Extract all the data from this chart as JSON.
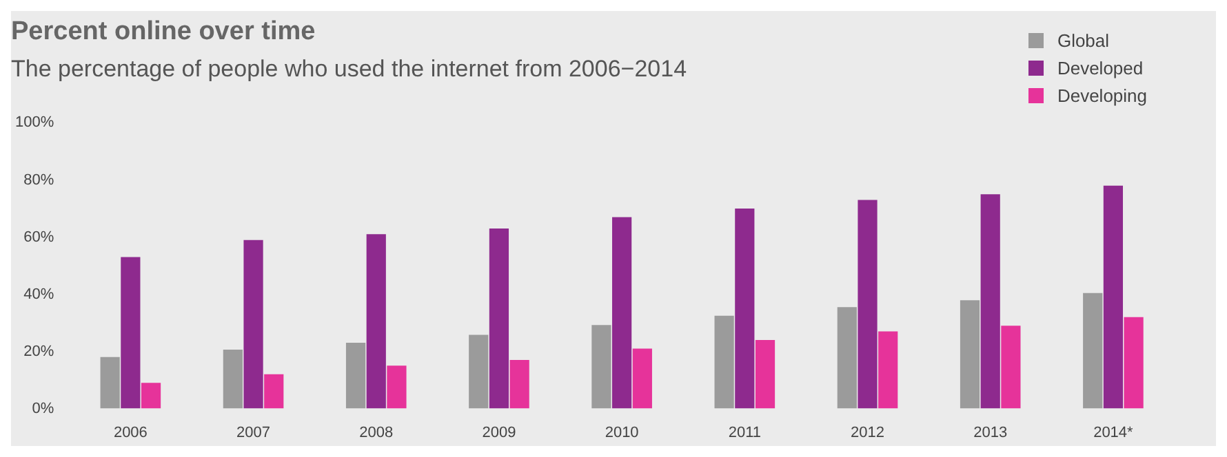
{
  "chart_data": {
    "type": "bar",
    "title": "Percent online over time",
    "subtitle": "The percentage of people who used the internet from 2006−2014",
    "categories": [
      "2006",
      "2007",
      "2008",
      "2009",
      "2010",
      "2011",
      "2012",
      "2013",
      "2014*"
    ],
    "series": [
      {
        "name": "Global",
        "color": "#9b9b9b",
        "values": [
          18,
          20.6,
          23,
          25.8,
          29.2,
          32.5,
          35.5,
          37.9,
          40.4
        ]
      },
      {
        "name": "Developed",
        "color": "#8e2a8e",
        "values": [
          53,
          59,
          61,
          63,
          67,
          70,
          73,
          75,
          78
        ]
      },
      {
        "name": "Developing",
        "color": "#e6339a",
        "values": [
          9,
          12,
          15,
          17,
          21,
          24,
          27,
          29,
          32
        ]
      }
    ],
    "ylim": [
      0,
      100
    ],
    "yticks": [
      {
        "value": 0,
        "label": "0%"
      },
      {
        "value": 20,
        "label": "20%"
      },
      {
        "value": 40,
        "label": "40%"
      },
      {
        "value": 60,
        "label": "60%"
      },
      {
        "value": 80,
        "label": "80%"
      },
      {
        "value": 100,
        "label": "100%"
      }
    ],
    "legend": "top right"
  }
}
